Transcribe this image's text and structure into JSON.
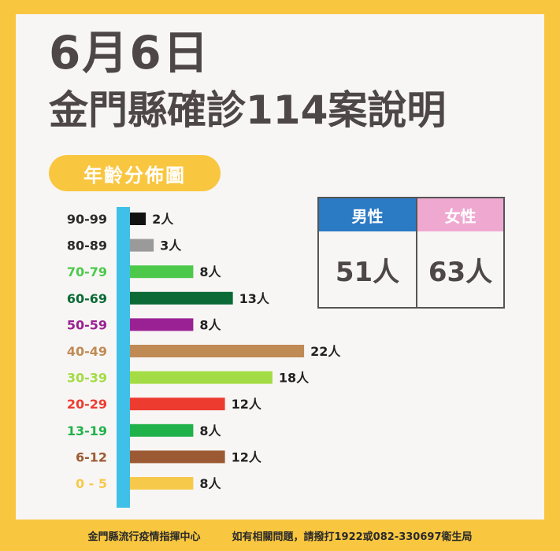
{
  "header": {
    "date": "6月6日",
    "title": "金門縣確診114案說明"
  },
  "section_label": "年齡分佈圖",
  "gender": {
    "male_label": "男性",
    "male_value": "51人",
    "female_label": "女性",
    "female_value": "63人",
    "male_color": "#2b7ac4",
    "female_color": "#efa9d1"
  },
  "footer": {
    "org": "金門縣流行疫情指揮中心",
    "contact": "如有相關問題，請撥打1922或082-330697衛生局"
  },
  "chart_data": {
    "type": "bar",
    "orientation": "horizontal",
    "unit": "人",
    "categories": [
      "90-99",
      "80-89",
      "70-79",
      "60-69",
      "50-59",
      "40-49",
      "30-39",
      "20-29",
      "13-19",
      "6-12",
      "0 - 5"
    ],
    "values": [
      2,
      3,
      8,
      13,
      8,
      22,
      18,
      12,
      8,
      12,
      8
    ],
    "colors": [
      "#111111",
      "#9a9a9a",
      "#4cc94b",
      "#0b6a35",
      "#9a2194",
      "#c08a55",
      "#a3dc44",
      "#ee3b30",
      "#20b24a",
      "#9c5a34",
      "#f7c94b"
    ],
    "axis_color": "#3ec0e8",
    "grid": false
  }
}
